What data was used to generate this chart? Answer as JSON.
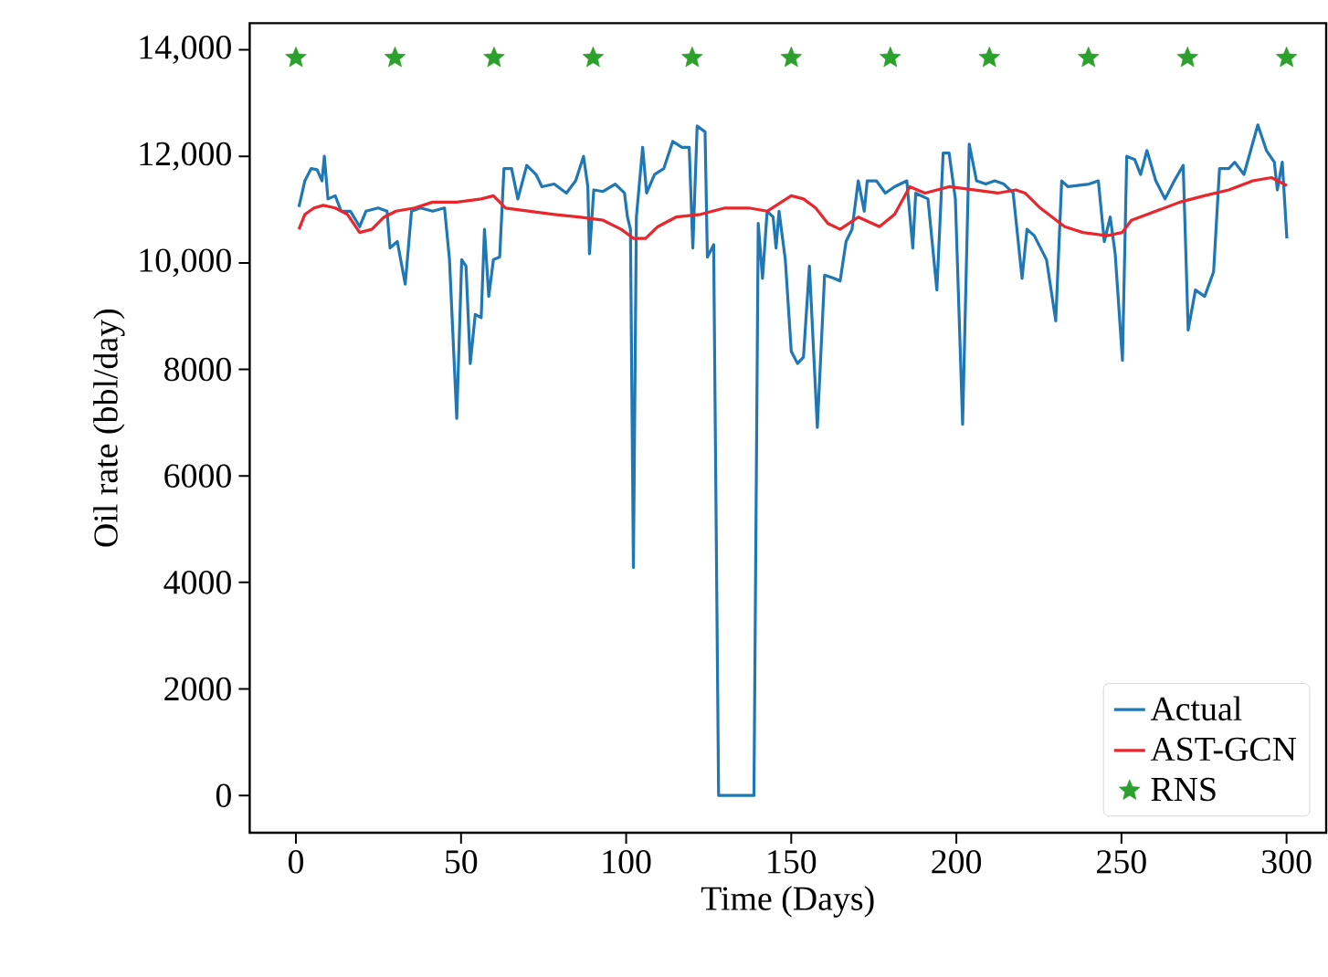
{
  "chart_data": {
    "type": "line",
    "xlabel": "Time (Days)",
    "ylabel": "Oil rate (bbl/day)",
    "xlim": [
      -14,
      312
    ],
    "ylim": [
      -700,
      14500
    ],
    "xticks": [
      0,
      50,
      100,
      150,
      200,
      250,
      300
    ],
    "yticks": [
      0,
      2000,
      4000,
      6000,
      8000,
      {
        "value": 10000,
        "label": "10,000"
      },
      {
        "value": 12000,
        "label": "12,000"
      },
      {
        "value": 14000,
        "label": "14,000"
      }
    ],
    "legend": "bottom right",
    "grid": false,
    "series": [
      {
        "name": "Actual",
        "color": "#1f77b4",
        "x": [
          0.9,
          2.7,
          4.6,
          6.4,
          7.9,
          8.6,
          9.7,
          11.9,
          13.7,
          16.5,
          19.3,
          21.2,
          24.9,
          27.6,
          28.5,
          30.7,
          33.1,
          35,
          37.7,
          41.4,
          45,
          46.5,
          48.7,
          50.2,
          51.5,
          52.8,
          54.3,
          56.1,
          57.1,
          58.4,
          59.8,
          61.7,
          63,
          65.3,
          67.2,
          69.9,
          72.7,
          74.5,
          78.2,
          81.9,
          84.7,
          87.1,
          88.4,
          88.9,
          90.2,
          93,
          96.7,
          99.5,
          100.4,
          101.3,
          102.2,
          103.1,
          105,
          106.2,
          108.6,
          111.4,
          114.1,
          116.9,
          119.1,
          120.2,
          121.5,
          123.9,
          124.6,
          126.5,
          128,
          138.7,
          140,
          141.3,
          142.7,
          144.5,
          145.4,
          146.3,
          148.2,
          150,
          151.9,
          153.7,
          155.5,
          157.9,
          160.1,
          162.9,
          164.8,
          166.6,
          168.4,
          170.3,
          172.1,
          173,
          175.8,
          178.5,
          181.3,
          185,
          186.8,
          187.7,
          191.4,
          194.1,
          196,
          197.8,
          199.7,
          201.9,
          203.9,
          206.1,
          208.9,
          211.6,
          214.4,
          217.2,
          219.9,
          221.4,
          223.6,
          227.3,
          230.1,
          231.9,
          233.8,
          240.2,
          243,
          244.8,
          246.6,
          248.1,
          250.3,
          251.6,
          254,
          255.8,
          257.7,
          260.4,
          263.2,
          266,
          268.7,
          270.2,
          272.4,
          275.2,
          277.9,
          279.7,
          282.5,
          284.3,
          287.1,
          288.9,
          291.3,
          293.9,
          296.3,
          297.2,
          298.7,
          300.1
        ],
        "values": [
          11050,
          11540,
          11770,
          11750,
          11540,
          12000,
          11200,
          11260,
          10970,
          10970,
          10680,
          10970,
          11030,
          10970,
          10280,
          10400,
          9600,
          10970,
          11030,
          10970,
          11030,
          10060,
          7080,
          10060,
          9940,
          8110,
          9030,
          8970,
          10630,
          9370,
          10060,
          10110,
          11770,
          11770,
          11200,
          11830,
          11660,
          11430,
          11480,
          11310,
          11540,
          12000,
          11430,
          10170,
          11370,
          11340,
          11480,
          11310,
          10860,
          10630,
          4280,
          10860,
          12170,
          11310,
          11660,
          11770,
          12280,
          12170,
          12170,
          10280,
          12570,
          12460,
          10110,
          10340,
          0,
          0,
          10740,
          9710,
          10970,
          10860,
          10280,
          10970,
          10060,
          8340,
          8110,
          8230,
          9940,
          6910,
          9770,
          9710,
          9660,
          10400,
          10630,
          11540,
          10970,
          11540,
          11540,
          11310,
          11430,
          11540,
          10280,
          11310,
          11200,
          9490,
          12060,
          12060,
          11200,
          6970,
          12230,
          11540,
          11480,
          11540,
          11480,
          11310,
          9710,
          10630,
          10510,
          10060,
          8910,
          11540,
          11430,
          11480,
          11540,
          10400,
          10860,
          10170,
          8170,
          12000,
          11940,
          11660,
          12110,
          11540,
          11200,
          11540,
          11830,
          8740,
          9490,
          9370,
          9830,
          11770,
          11770,
          11890,
          11660,
          12060,
          12590,
          12110,
          11890,
          11370,
          11890,
          10460
        ]
      },
      {
        "name": "AST-GCN",
        "color": "#e8262b",
        "x": [
          0.9,
          2.7,
          5.5,
          8.3,
          11.9,
          15.6,
          19.3,
          23,
          26.7,
          30.3,
          35.9,
          41.4,
          48.7,
          56.1,
          59.8,
          63.5,
          70.8,
          78.2,
          85.6,
          93,
          98.5,
          102.2,
          105.9,
          109.6,
          115.1,
          122.5,
          129.9,
          137.2,
          142.7,
          150,
          153.7,
          157.4,
          161.1,
          164.8,
          170.3,
          176.7,
          181.3,
          185.9,
          190.5,
          197.8,
          205.2,
          212.5,
          218,
          220.8,
          225.4,
          232.8,
          238.3,
          245.6,
          250.2,
          253,
          260.4,
          267.7,
          275.1,
          282.5,
          289.8,
          295.4,
          300.1
        ],
        "values": [
          10630,
          10910,
          11030,
          11080,
          11030,
          10910,
          10570,
          10630,
          10860,
          10970,
          11030,
          11140,
          11140,
          11200,
          11260,
          11030,
          10970,
          10910,
          10860,
          10800,
          10630,
          10460,
          10460,
          10680,
          10860,
          10910,
          11030,
          11030,
          10970,
          11260,
          11200,
          11030,
          10740,
          10630,
          10860,
          10680,
          10910,
          11430,
          11310,
          11430,
          11370,
          11310,
          11370,
          11310,
          11030,
          10680,
          10570,
          10510,
          10570,
          10800,
          10970,
          11140,
          11260,
          11370,
          11540,
          11600,
          11450
        ]
      },
      {
        "name": "RNS",
        "type": "scatter",
        "marker": "star",
        "color": "#2ca02c",
        "x": [
          0,
          30,
          60,
          90,
          120,
          150,
          180,
          210,
          240,
          270,
          300
        ],
        "values": [
          13850,
          13850,
          13850,
          13850,
          13850,
          13850,
          13850,
          13850,
          13850,
          13850,
          13850
        ]
      }
    ]
  }
}
